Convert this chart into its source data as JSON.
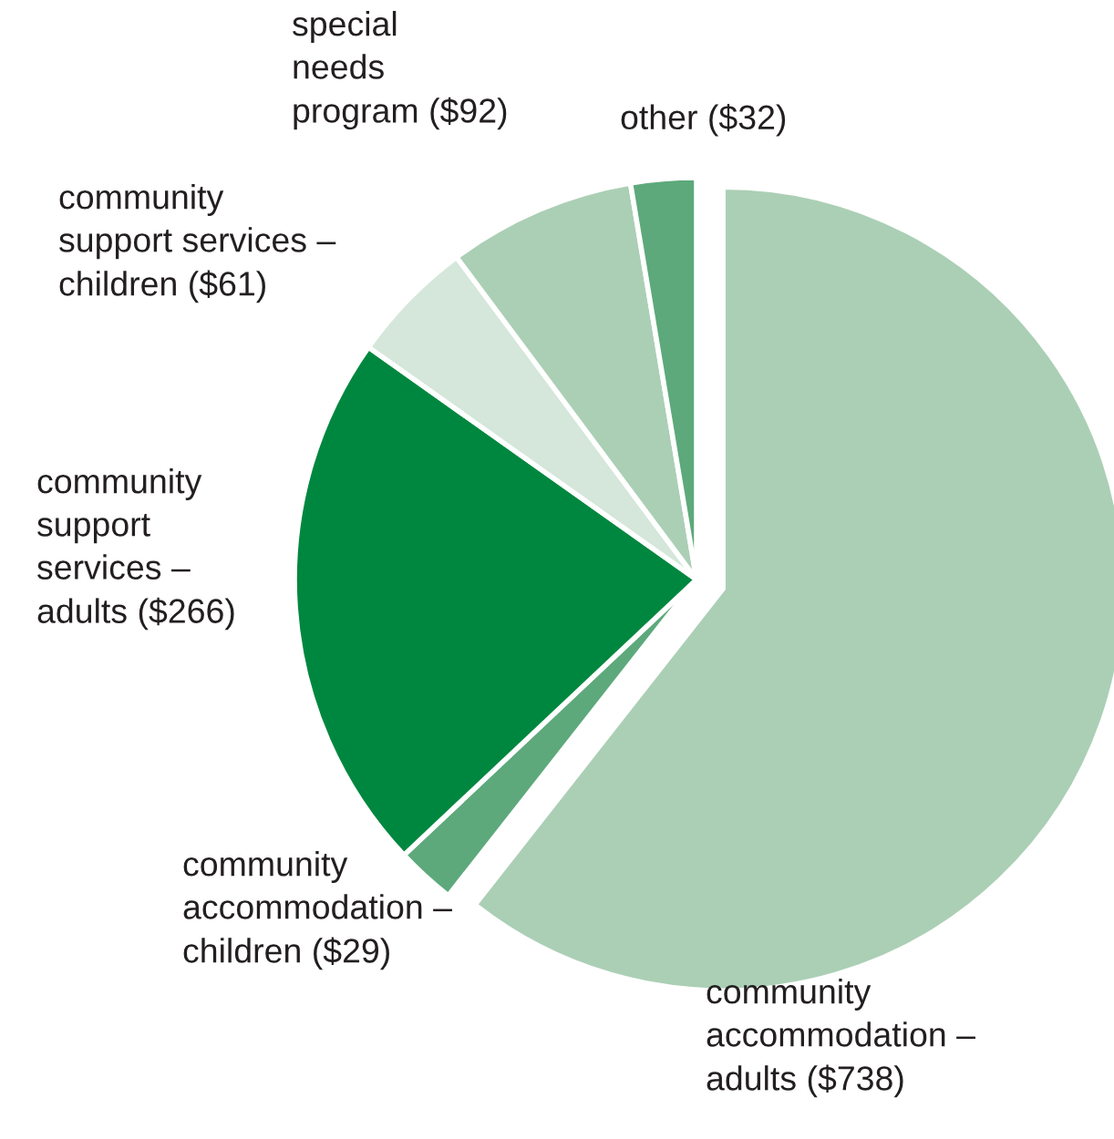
{
  "chart_data": {
    "type": "pie",
    "categories": [
      "community\naccommodation –\nadults",
      "community\naccommodation –\nchildren",
      "community\nsupport\nservices –\nadults",
      "community\nsupport services –\nchildren",
      "special\nneeds\nprogram",
      "other"
    ],
    "values": [
      738,
      29,
      266,
      61,
      92,
      32
    ],
    "value_labels": [
      "($738)",
      "($29)",
      "($266)",
      "($61)",
      "($92)",
      "($32)"
    ],
    "colors": [
      "#abcfb5",
      "#5da97b",
      "#00873f",
      "#d4e7da",
      "#abcfb5",
      "#5da97b"
    ]
  }
}
